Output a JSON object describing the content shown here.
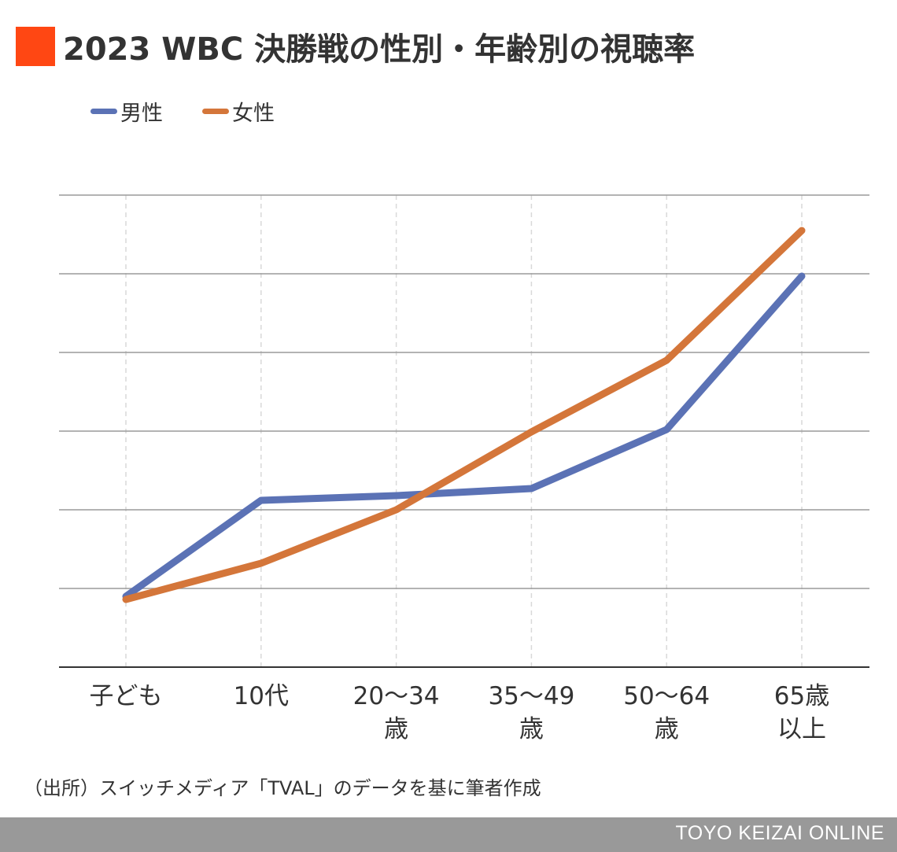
{
  "title": "2023 WBC 決勝戦の性別・年齢別の視聴率",
  "colors": {
    "accent": "#FF4713",
    "male": "#5B72B5",
    "female": "#D4763A",
    "footer_bg": "#999999"
  },
  "chart_data": {
    "type": "line",
    "categories": [
      "子ども",
      "10代",
      "20〜34歳",
      "35〜49歳",
      "50〜64歳",
      "65歳以上"
    ],
    "category_lines": [
      [
        "子ども"
      ],
      [
        "10代"
      ],
      [
        "20〜34",
        "歳"
      ],
      [
        "35〜49",
        "歳"
      ],
      [
        "50〜64",
        "歳"
      ],
      [
        "65歳",
        "以上"
      ]
    ],
    "series": [
      {
        "name": "男性",
        "color": "#5B72B5",
        "values": [
          0.9,
          2.12,
          2.18,
          2.27,
          3.02,
          4.97
        ]
      },
      {
        "name": "女性",
        "color": "#D4763A",
        "values": [
          0.86,
          1.32,
          2.0,
          2.99,
          3.9,
          5.55
        ]
      }
    ],
    "ylim": [
      0,
      6
    ],
    "grid": true,
    "legend_position": "top-left"
  },
  "source": "（出所）スイッチメディア「TVAL」のデータを基に筆者作成",
  "footer": "TOYO KEIZAI ONLINE"
}
